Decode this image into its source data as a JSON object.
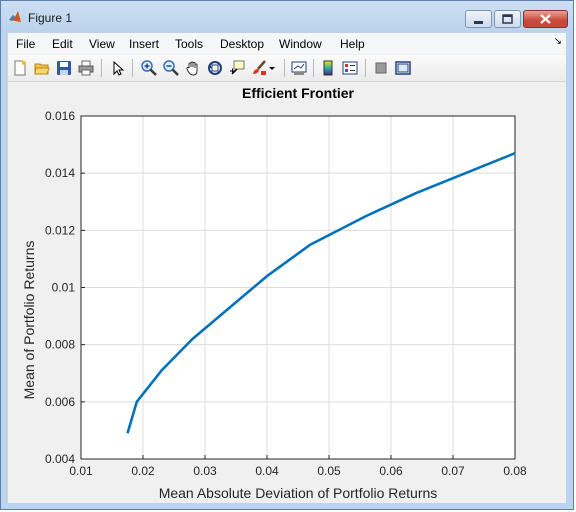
{
  "window": {
    "title": "Figure 1",
    "accent_color": "#bcd3ec",
    "close_color": "#c94a3a"
  },
  "menubar": {
    "items": [
      "File",
      "Edit",
      "View",
      "Insert",
      "Tools",
      "Desktop",
      "Window",
      "Help"
    ],
    "overflow_icon": "dock-arrow-icon"
  },
  "toolbar": {
    "icons": [
      "new-figure-icon",
      "open-file-icon",
      "save-icon",
      "print-icon",
      "edit-plot-arrow-icon",
      "zoom-in-icon",
      "zoom-out-icon",
      "pan-hand-icon",
      "rotate-3d-icon",
      "data-cursor-icon",
      "brush-icon",
      "brush-dropdown-icon",
      "link-plot-icon",
      "insert-colorbar-icon",
      "insert-legend-icon",
      "hide-plot-tools-icon",
      "show-plot-tools-icon"
    ]
  },
  "chart_data": {
    "type": "line",
    "title": "Efficient Frontier",
    "xlabel": "Mean Absolute Deviation of Portfolio Returns",
    "ylabel": "Mean of Portfolio Returns",
    "xlim": [
      0.01,
      0.08
    ],
    "ylim": [
      0.004,
      0.016
    ],
    "xticks": [
      "0.01",
      "0.02",
      "0.03",
      "0.04",
      "0.05",
      "0.06",
      "0.07",
      "0.08"
    ],
    "yticks": [
      "0.004",
      "0.006",
      "0.008",
      "0.01",
      "0.012",
      "0.014",
      "0.016"
    ],
    "grid": true,
    "line_color": "#0072bd",
    "series": [
      {
        "x": [
          0.0175,
          0.019,
          0.023,
          0.028,
          0.034,
          0.04,
          0.047,
          0.056,
          0.064,
          0.072,
          0.08
        ],
        "y": [
          0.0049,
          0.006,
          0.0071,
          0.0082,
          0.0093,
          0.0104,
          0.0115,
          0.0125,
          0.0133,
          0.014,
          0.0147
        ]
      }
    ]
  }
}
